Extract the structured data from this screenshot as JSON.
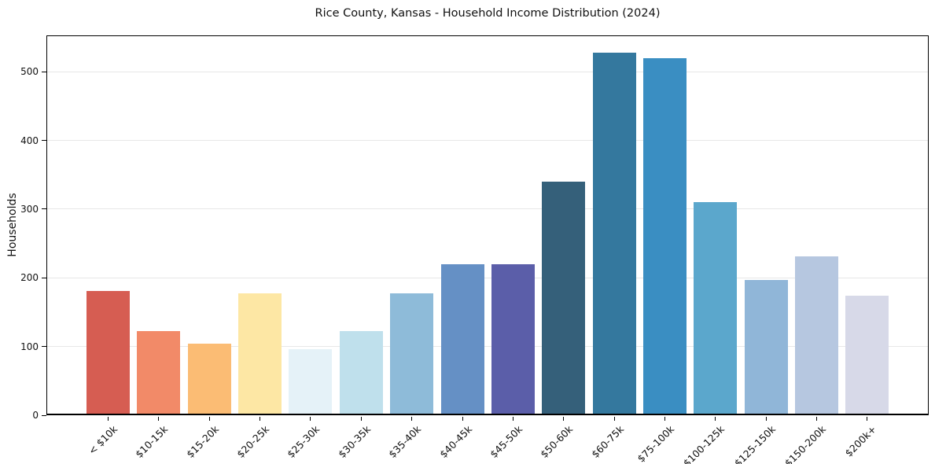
{
  "chart_data": {
    "type": "bar",
    "title": "Rice County, Kansas - Household Income Distribution (2024)",
    "xlabel": "",
    "ylabel": "Households",
    "categories": [
      "< $10k",
      "$10-15k",
      "$15-20k",
      "$20-25k",
      "$25-30k",
      "$30-35k",
      "$35-40k",
      "$40-45k",
      "$45-50k",
      "$50-60k",
      "$60-75k",
      "$75-100k",
      "$100-125k",
      "$125-150k",
      "$150-200k",
      "$200k+"
    ],
    "values": [
      181,
      122,
      104,
      178,
      96,
      122,
      177,
      220,
      220,
      340,
      528,
      520,
      310,
      197,
      231,
      174
    ],
    "bar_colors": [
      "#d65d52",
      "#f28a68",
      "#fbbc74",
      "#fde7a4",
      "#e5f2f8",
      "#bfe0ec",
      "#8ebbd9",
      "#6590c5",
      "#5b5ea9",
      "#35607a",
      "#34789e",
      "#3a8ec2",
      "#5ba7cc",
      "#90b6d8",
      "#b6c7e0",
      "#d7d9e8"
    ],
    "yticks": [
      0,
      100,
      200,
      300,
      400,
      500
    ],
    "ylim": [
      0,
      553
    ],
    "grid": "horizontal",
    "gridline_color": "#e7e7e7",
    "background_color": "#ffffff",
    "text_color": "#111111",
    "x_tick_rotation": 45,
    "legend": "none"
  }
}
